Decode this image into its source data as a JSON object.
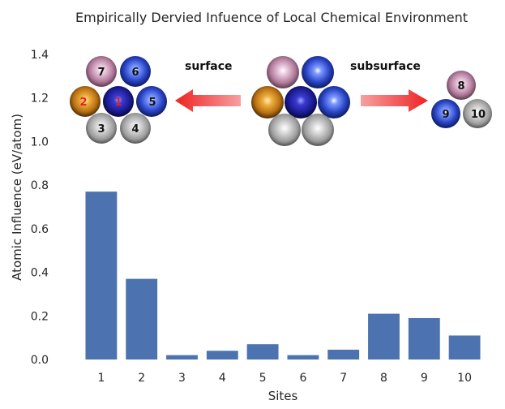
{
  "chart_data": {
    "type": "bar",
    "title": "Empirically Dervied Infuence of Local Chemical Environment",
    "xlabel": "Sites",
    "ylabel": "Atomic Influence (eV/atom)",
    "categories": [
      "1",
      "2",
      "3",
      "4",
      "5",
      "6",
      "7",
      "8",
      "9",
      "10"
    ],
    "values": [
      0.77,
      0.37,
      0.02,
      0.04,
      0.07,
      0.02,
      0.045,
      0.21,
      0.19,
      0.11
    ],
    "ylim": [
      0,
      1.5
    ],
    "yticks": [
      "0.0",
      "0.2",
      "0.4",
      "0.6",
      "0.8",
      "1.0",
      "1.2",
      "1.4"
    ],
    "grid": false,
    "bar_color": "#4c72b0"
  },
  "inset": {
    "surface_label": "surface",
    "subsurface_label": "subsurface",
    "surface_atoms": [
      {
        "num": "7",
        "color": "#b07a9a"
      },
      {
        "num": "6",
        "color": "#2a45c8"
      },
      {
        "num": "2",
        "color": "#b87012",
        "num_color": "#e82020"
      },
      {
        "num": "1",
        "color": "#1a1a90",
        "num_color": "#e82020"
      },
      {
        "num": "5",
        "color": "#2a45c8"
      },
      {
        "num": "3",
        "color": "#9a9a9a"
      },
      {
        "num": "4",
        "color": "#9a9a9a"
      }
    ],
    "subsurface_atoms": [
      {
        "num": "8",
        "color": "#b07a9a"
      },
      {
        "num": "9",
        "color": "#2a45c8"
      },
      {
        "num": "10",
        "color": "#9a9a9a"
      }
    ],
    "arrow_color": "#ee3333"
  }
}
